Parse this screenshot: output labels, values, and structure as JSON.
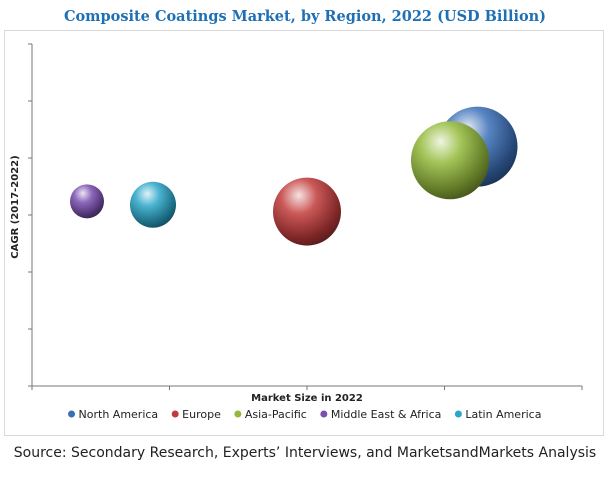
{
  "chart_data": {
    "type": "bubble",
    "title": "Composite Coatings Market, by Region, 2022 (USD Billion)",
    "xlabel": "Market Size in 2022",
    "ylabel": "CAGR (2017-2022)",
    "xlim": [
      0,
      10
    ],
    "ylim": [
      0,
      10
    ],
    "x_tick_count": 5,
    "y_tick_count": 7,
    "grid": false,
    "legend_position": "bottom",
    "series": [
      {
        "name": "North America",
        "x": 8.1,
        "y": 7.0,
        "size": 40,
        "color": "#3a6fb8"
      },
      {
        "name": "Europe",
        "x": 5.0,
        "y": 5.1,
        "size": 34,
        "color": "#c23b3b"
      },
      {
        "name": "Asia-Pacific",
        "x": 7.6,
        "y": 6.6,
        "size": 39,
        "color": "#93b93a"
      },
      {
        "name": "Middle East & Africa",
        "x": 1.0,
        "y": 5.4,
        "size": 17,
        "color": "#7a4fb0"
      },
      {
        "name": "Latin America",
        "x": 2.2,
        "y": 5.3,
        "size": 23,
        "color": "#2aa6c8"
      }
    ]
  },
  "source": "Source: Secondary Research, Experts’ Interviews, and MarketsandMarkets Analysis"
}
